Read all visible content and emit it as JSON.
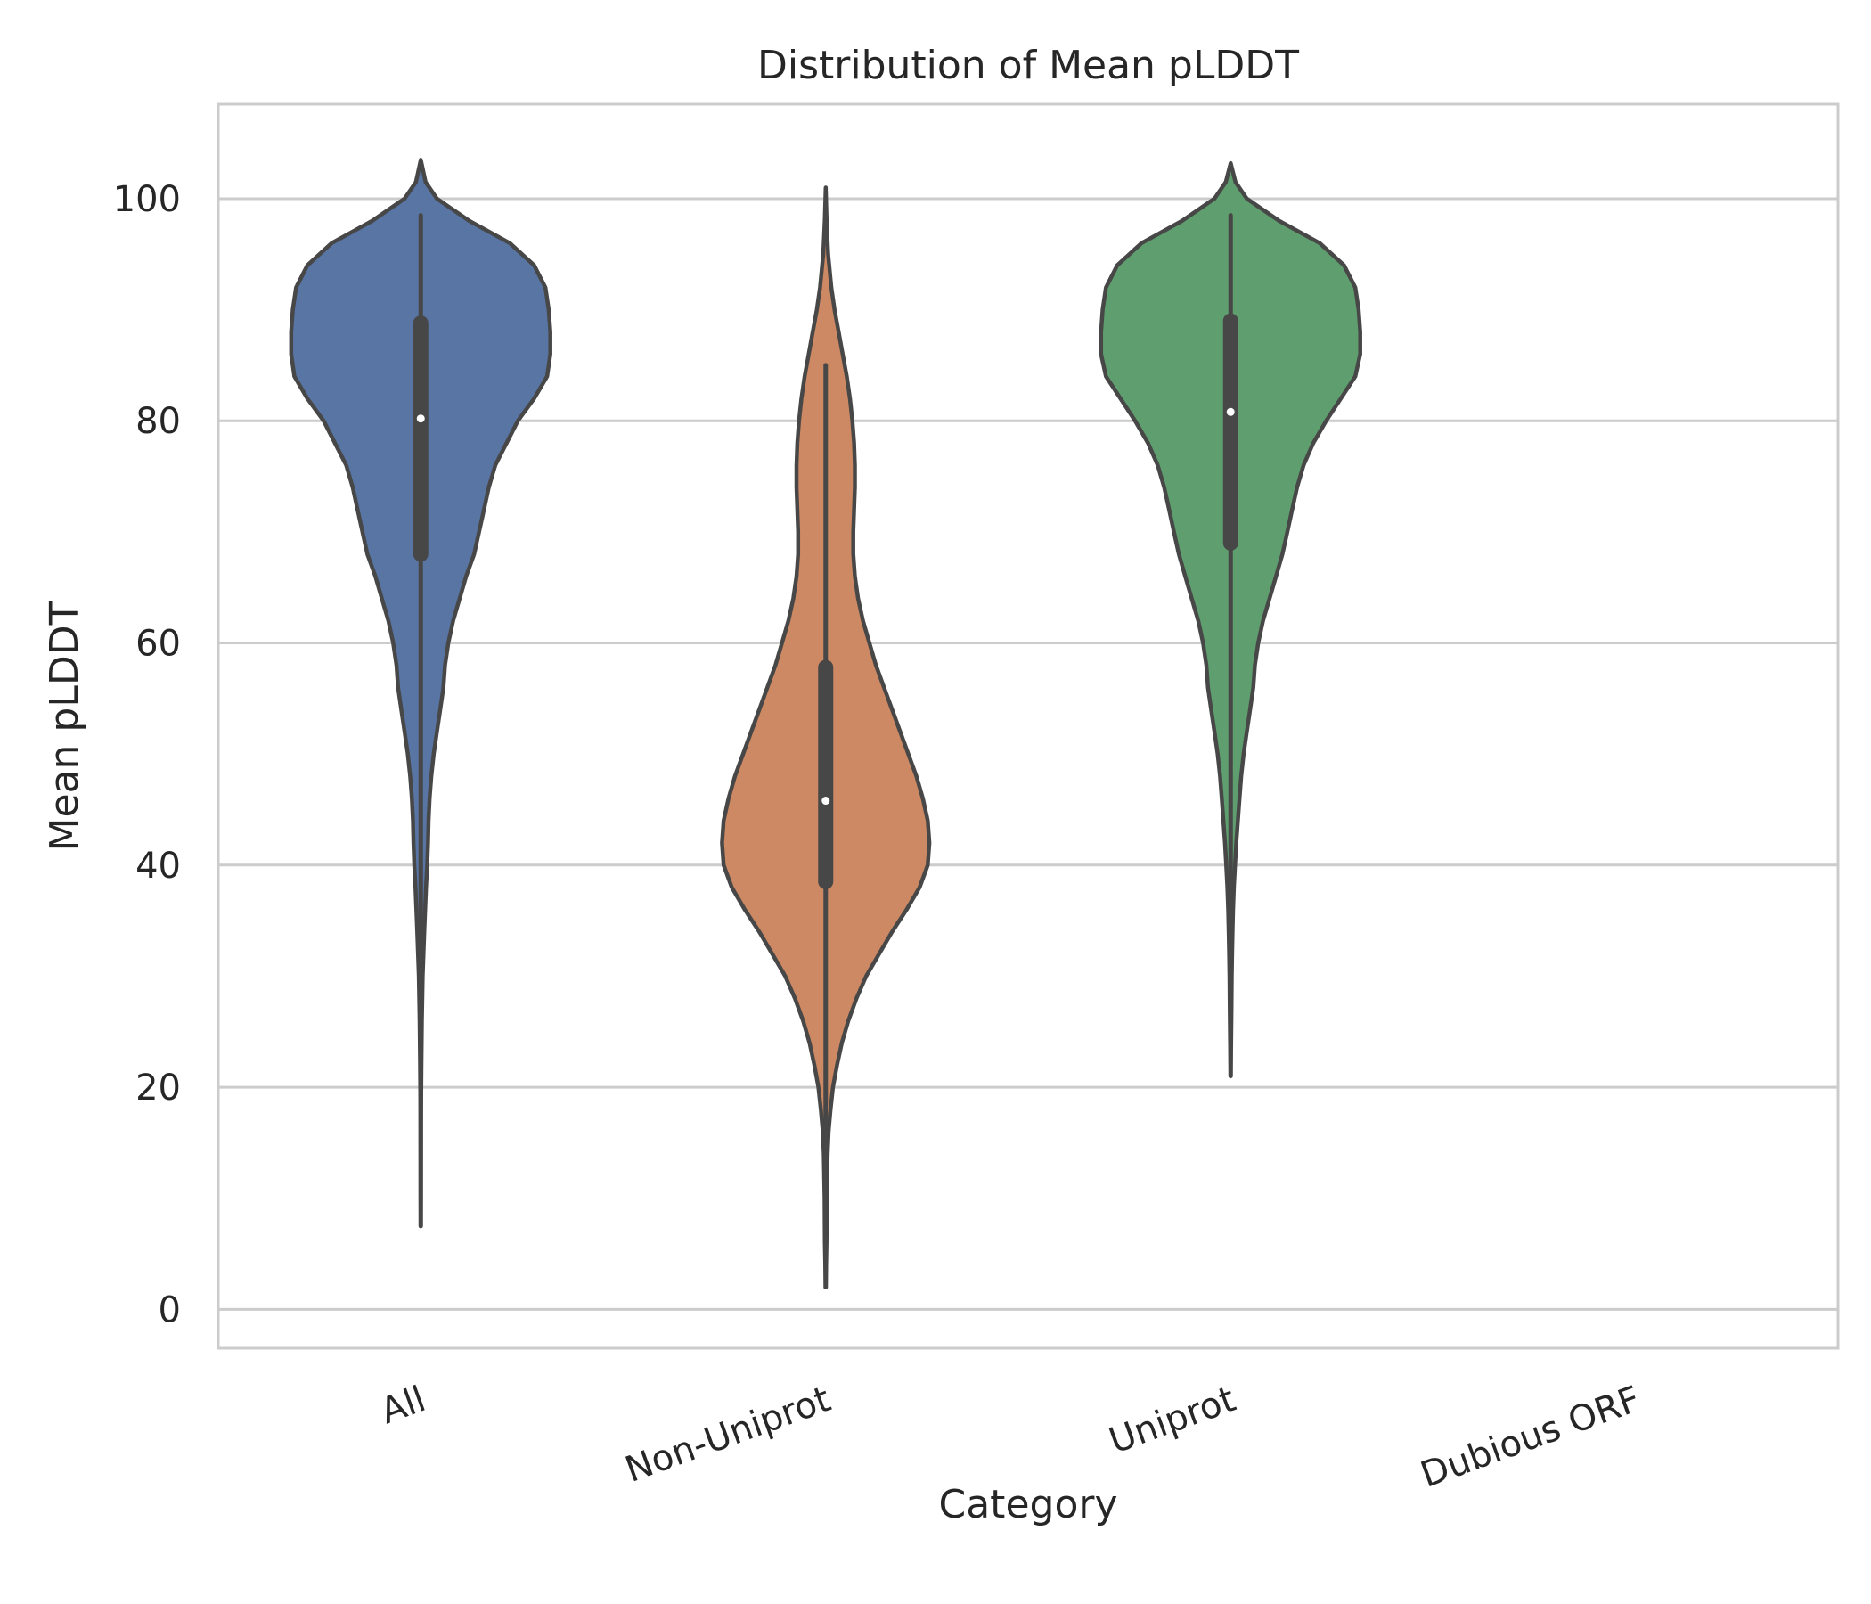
{
  "chart_data": {
    "type": "violin",
    "title": "Distribution of Mean pLDDT",
    "xlabel": "Category",
    "ylabel": "Mean pLDDT",
    "ylim": [
      -3.5,
      108.5
    ],
    "yticks": [
      0,
      20,
      40,
      60,
      80,
      100
    ],
    "grid": "horizontal",
    "categories": [
      "All",
      "Non-Uniprot",
      "Uniprot",
      "Dubious ORF"
    ],
    "colors": [
      "#5875a4",
      "#cc8963",
      "#5f9e6e",
      "#b55d60"
    ],
    "violins": [
      {
        "category": "All",
        "whisker": [
          7.5,
          98.5
        ],
        "q1": 68,
        "median": 80.2,
        "q3": 88.8,
        "profile": [
          [
            103.5,
            0.0
          ],
          [
            101.5,
            0.03
          ],
          [
            100,
            0.1
          ],
          [
            98,
            0.3
          ],
          [
            96,
            0.55
          ],
          [
            94,
            0.7
          ],
          [
            92,
            0.77
          ],
          [
            90,
            0.79
          ],
          [
            88,
            0.8
          ],
          [
            86,
            0.8
          ],
          [
            84,
            0.78
          ],
          [
            82,
            0.7
          ],
          [
            80,
            0.6
          ],
          [
            78,
            0.53
          ],
          [
            76,
            0.46
          ],
          [
            74,
            0.42
          ],
          [
            72,
            0.39
          ],
          [
            70,
            0.36
          ],
          [
            68,
            0.33
          ],
          [
            66,
            0.28
          ],
          [
            64,
            0.24
          ],
          [
            62,
            0.2
          ],
          [
            60,
            0.17
          ],
          [
            58,
            0.15
          ],
          [
            56,
            0.14
          ],
          [
            54,
            0.12
          ],
          [
            52,
            0.1
          ],
          [
            50,
            0.08
          ],
          [
            48,
            0.065
          ],
          [
            46,
            0.055
          ],
          [
            44,
            0.048
          ],
          [
            42,
            0.045
          ],
          [
            40,
            0.04
          ],
          [
            38,
            0.033
          ],
          [
            36,
            0.027
          ],
          [
            34,
            0.022
          ],
          [
            32,
            0.017
          ],
          [
            30,
            0.012
          ],
          [
            26,
            0.007
          ],
          [
            22,
            0.004
          ],
          [
            18,
            0.002
          ],
          [
            14,
            0.0015
          ],
          [
            10,
            0.001
          ],
          [
            7.5,
            0.0
          ]
        ]
      },
      {
        "category": "Non-Uniprot",
        "whisker": [
          2,
          85
        ],
        "q1": 38.5,
        "median": 45.8,
        "q3": 57.8,
        "profile": [
          [
            101,
            0.0
          ],
          [
            98,
            0.006
          ],
          [
            95,
            0.015
          ],
          [
            92,
            0.035
          ],
          [
            90,
            0.055
          ],
          [
            88,
            0.08
          ],
          [
            86,
            0.105
          ],
          [
            84,
            0.13
          ],
          [
            82,
            0.15
          ],
          [
            80,
            0.165
          ],
          [
            78,
            0.175
          ],
          [
            76,
            0.18
          ],
          [
            74,
            0.18
          ],
          [
            72,
            0.175
          ],
          [
            70,
            0.17
          ],
          [
            68,
            0.17
          ],
          [
            66,
            0.18
          ],
          [
            64,
            0.2
          ],
          [
            62,
            0.23
          ],
          [
            60,
            0.27
          ],
          [
            58,
            0.31
          ],
          [
            56,
            0.36
          ],
          [
            54,
            0.41
          ],
          [
            52,
            0.46
          ],
          [
            50,
            0.51
          ],
          [
            48,
            0.56
          ],
          [
            46,
            0.6
          ],
          [
            44,
            0.63
          ],
          [
            42,
            0.64
          ],
          [
            40,
            0.63
          ],
          [
            38,
            0.58
          ],
          [
            36,
            0.5
          ],
          [
            34,
            0.41
          ],
          [
            32,
            0.33
          ],
          [
            30,
            0.25
          ],
          [
            28,
            0.19
          ],
          [
            26,
            0.14
          ],
          [
            24,
            0.1
          ],
          [
            22,
            0.07
          ],
          [
            20,
            0.045
          ],
          [
            18,
            0.03
          ],
          [
            16,
            0.018
          ],
          [
            14,
            0.012
          ],
          [
            10,
            0.007
          ],
          [
            6,
            0.005
          ],
          [
            2,
            0.0
          ]
        ]
      },
      {
        "category": "Uniprot",
        "whisker": [
          21,
          98.5
        ],
        "q1": 69,
        "median": 80.8,
        "q3": 89,
        "profile": [
          [
            103.2,
            0.0
          ],
          [
            101.5,
            0.03
          ],
          [
            100,
            0.1
          ],
          [
            98,
            0.3
          ],
          [
            96,
            0.55
          ],
          [
            94,
            0.7
          ],
          [
            92,
            0.77
          ],
          [
            90,
            0.79
          ],
          [
            88,
            0.8
          ],
          [
            86,
            0.8
          ],
          [
            84,
            0.77
          ],
          [
            82,
            0.68
          ],
          [
            80,
            0.59
          ],
          [
            78,
            0.51
          ],
          [
            76,
            0.45
          ],
          [
            74,
            0.41
          ],
          [
            72,
            0.38
          ],
          [
            70,
            0.35
          ],
          [
            68,
            0.32
          ],
          [
            66,
            0.28
          ],
          [
            64,
            0.24
          ],
          [
            62,
            0.2
          ],
          [
            60,
            0.17
          ],
          [
            58,
            0.15
          ],
          [
            56,
            0.14
          ],
          [
            54,
            0.12
          ],
          [
            52,
            0.1
          ],
          [
            50,
            0.08
          ],
          [
            48,
            0.065
          ],
          [
            46,
            0.055
          ],
          [
            44,
            0.045
          ],
          [
            42,
            0.035
          ],
          [
            40,
            0.027
          ],
          [
            38,
            0.02
          ],
          [
            36,
            0.015
          ],
          [
            34,
            0.012
          ],
          [
            32,
            0.009
          ],
          [
            30,
            0.007
          ],
          [
            27,
            0.005
          ],
          [
            24,
            0.003
          ],
          [
            21,
            0.0
          ]
        ]
      },
      {
        "category": "Dubious ORF",
        "whisker": null,
        "q1": null,
        "median": null,
        "q3": null,
        "profile": []
      }
    ]
  }
}
